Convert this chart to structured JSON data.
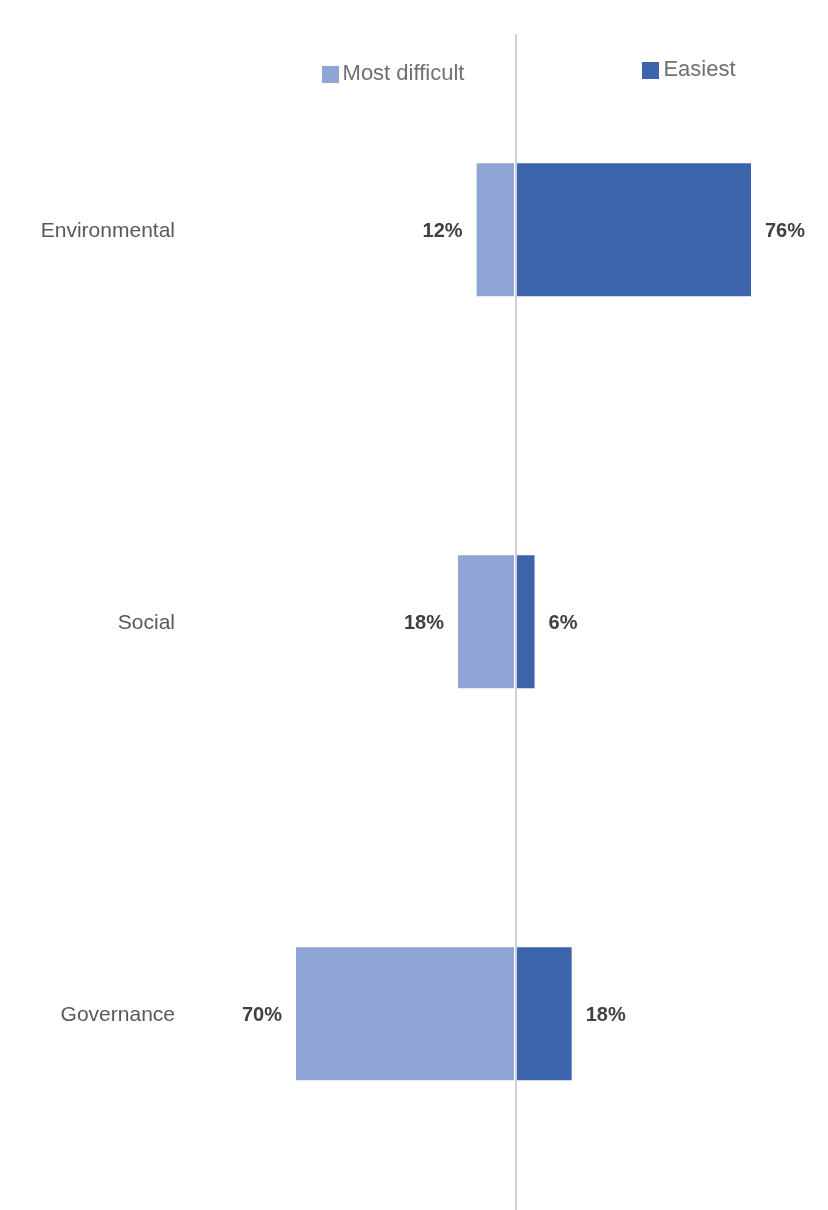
{
  "chart_data": [
    {
      "type": "bar",
      "orientation": "horizontal",
      "categories": [
        "Environmental",
        "Social",
        "Governance"
      ],
      "series": [
        {
          "name": "Most difficult",
          "color": "#8fa5d6",
          "values": [
            12,
            18,
            70
          ],
          "value_labels": [
            "12%",
            "18%",
            "70%"
          ]
        }
      ],
      "tick_labels": "y",
      "legend": "top",
      "grid": false
    },
    {
      "type": "bar",
      "orientation": "horizontal",
      "categories": [
        null,
        null,
        null
      ],
      "series": [
        {
          "name": "Easiest",
          "color": "#3b64ad",
          "values": [
            76,
            6,
            18
          ],
          "value_labels": [
            "76%",
            "6%",
            "18%"
          ]
        }
      ],
      "tick_labels": false,
      "legend": "top",
      "grid": false
    }
  ]
}
